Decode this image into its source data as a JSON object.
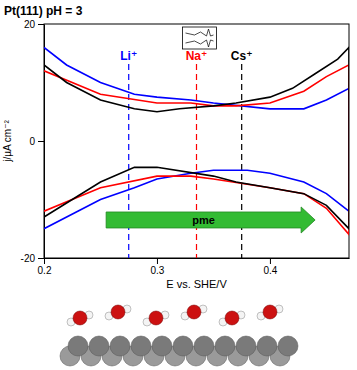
{
  "chart_data": {
    "type": "line",
    "title": "Pt(111) pH = 3",
    "x_label": "E vs. SHE/V",
    "y_label": "j/µA cm⁻²",
    "xlim": [
      0.2,
      0.47
    ],
    "ylim": [
      -20,
      20
    ],
    "xticks": [
      0.2,
      0.3,
      0.4
    ],
    "yticks": [
      -20,
      0,
      20
    ],
    "grid": false,
    "series": [
      {
        "name": "Li⁺",
        "color": "#0000ff",
        "pme": 0.275,
        "x": [
          0.2,
          0.22,
          0.25,
          0.28,
          0.3,
          0.33,
          0.35,
          0.4,
          0.43,
          0.45,
          0.47,
          0.47,
          0.45,
          0.43,
          0.4,
          0.38,
          0.35,
          0.33,
          0.3,
          0.28,
          0.25,
          0.2
        ],
        "values": [
          16,
          13,
          10,
          8,
          7.5,
          7,
          6.5,
          5.5,
          5.5,
          7,
          9,
          -12,
          -9,
          -7,
          -5.5,
          -5,
          -5,
          -5.5,
          -6.5,
          -8,
          -10,
          -15
        ]
      },
      {
        "name": "Na⁺",
        "color": "#ff0000",
        "pme": 0.335,
        "x": [
          0.2,
          0.25,
          0.3,
          0.33,
          0.35,
          0.37,
          0.4,
          0.43,
          0.45,
          0.47,
          0.47,
          0.45,
          0.43,
          0.4,
          0.35,
          0.33,
          0.3,
          0.25,
          0.2
        ],
        "values": [
          12,
          8,
          6.5,
          6.5,
          6,
          6,
          6.5,
          8.5,
          11,
          13,
          -16,
          -11.5,
          -9,
          -8,
          -6.5,
          -6,
          -6,
          -8,
          -12
        ]
      },
      {
        "name": "Cs⁺",
        "color": "#000000",
        "pme": 0.375,
        "x": [
          0.2,
          0.22,
          0.25,
          0.28,
          0.3,
          0.32,
          0.35,
          0.37,
          0.4,
          0.42,
          0.44,
          0.46,
          0.47,
          0.47,
          0.45,
          0.43,
          0.4,
          0.37,
          0.35,
          0.3,
          0.28,
          0.25,
          0.2
        ],
        "values": [
          13,
          10,
          7,
          5.5,
          5,
          5.5,
          6,
          6.5,
          7.5,
          9,
          11.5,
          14,
          16,
          -15,
          -11,
          -9,
          -8,
          -7,
          -6,
          -4.5,
          -4.5,
          -7,
          -13
        ]
      }
    ],
    "arrow": {
      "text": "pme",
      "x0": 0.255,
      "x1": 0.44,
      "y": -13.5,
      "color": "#33bb33"
    }
  }
}
